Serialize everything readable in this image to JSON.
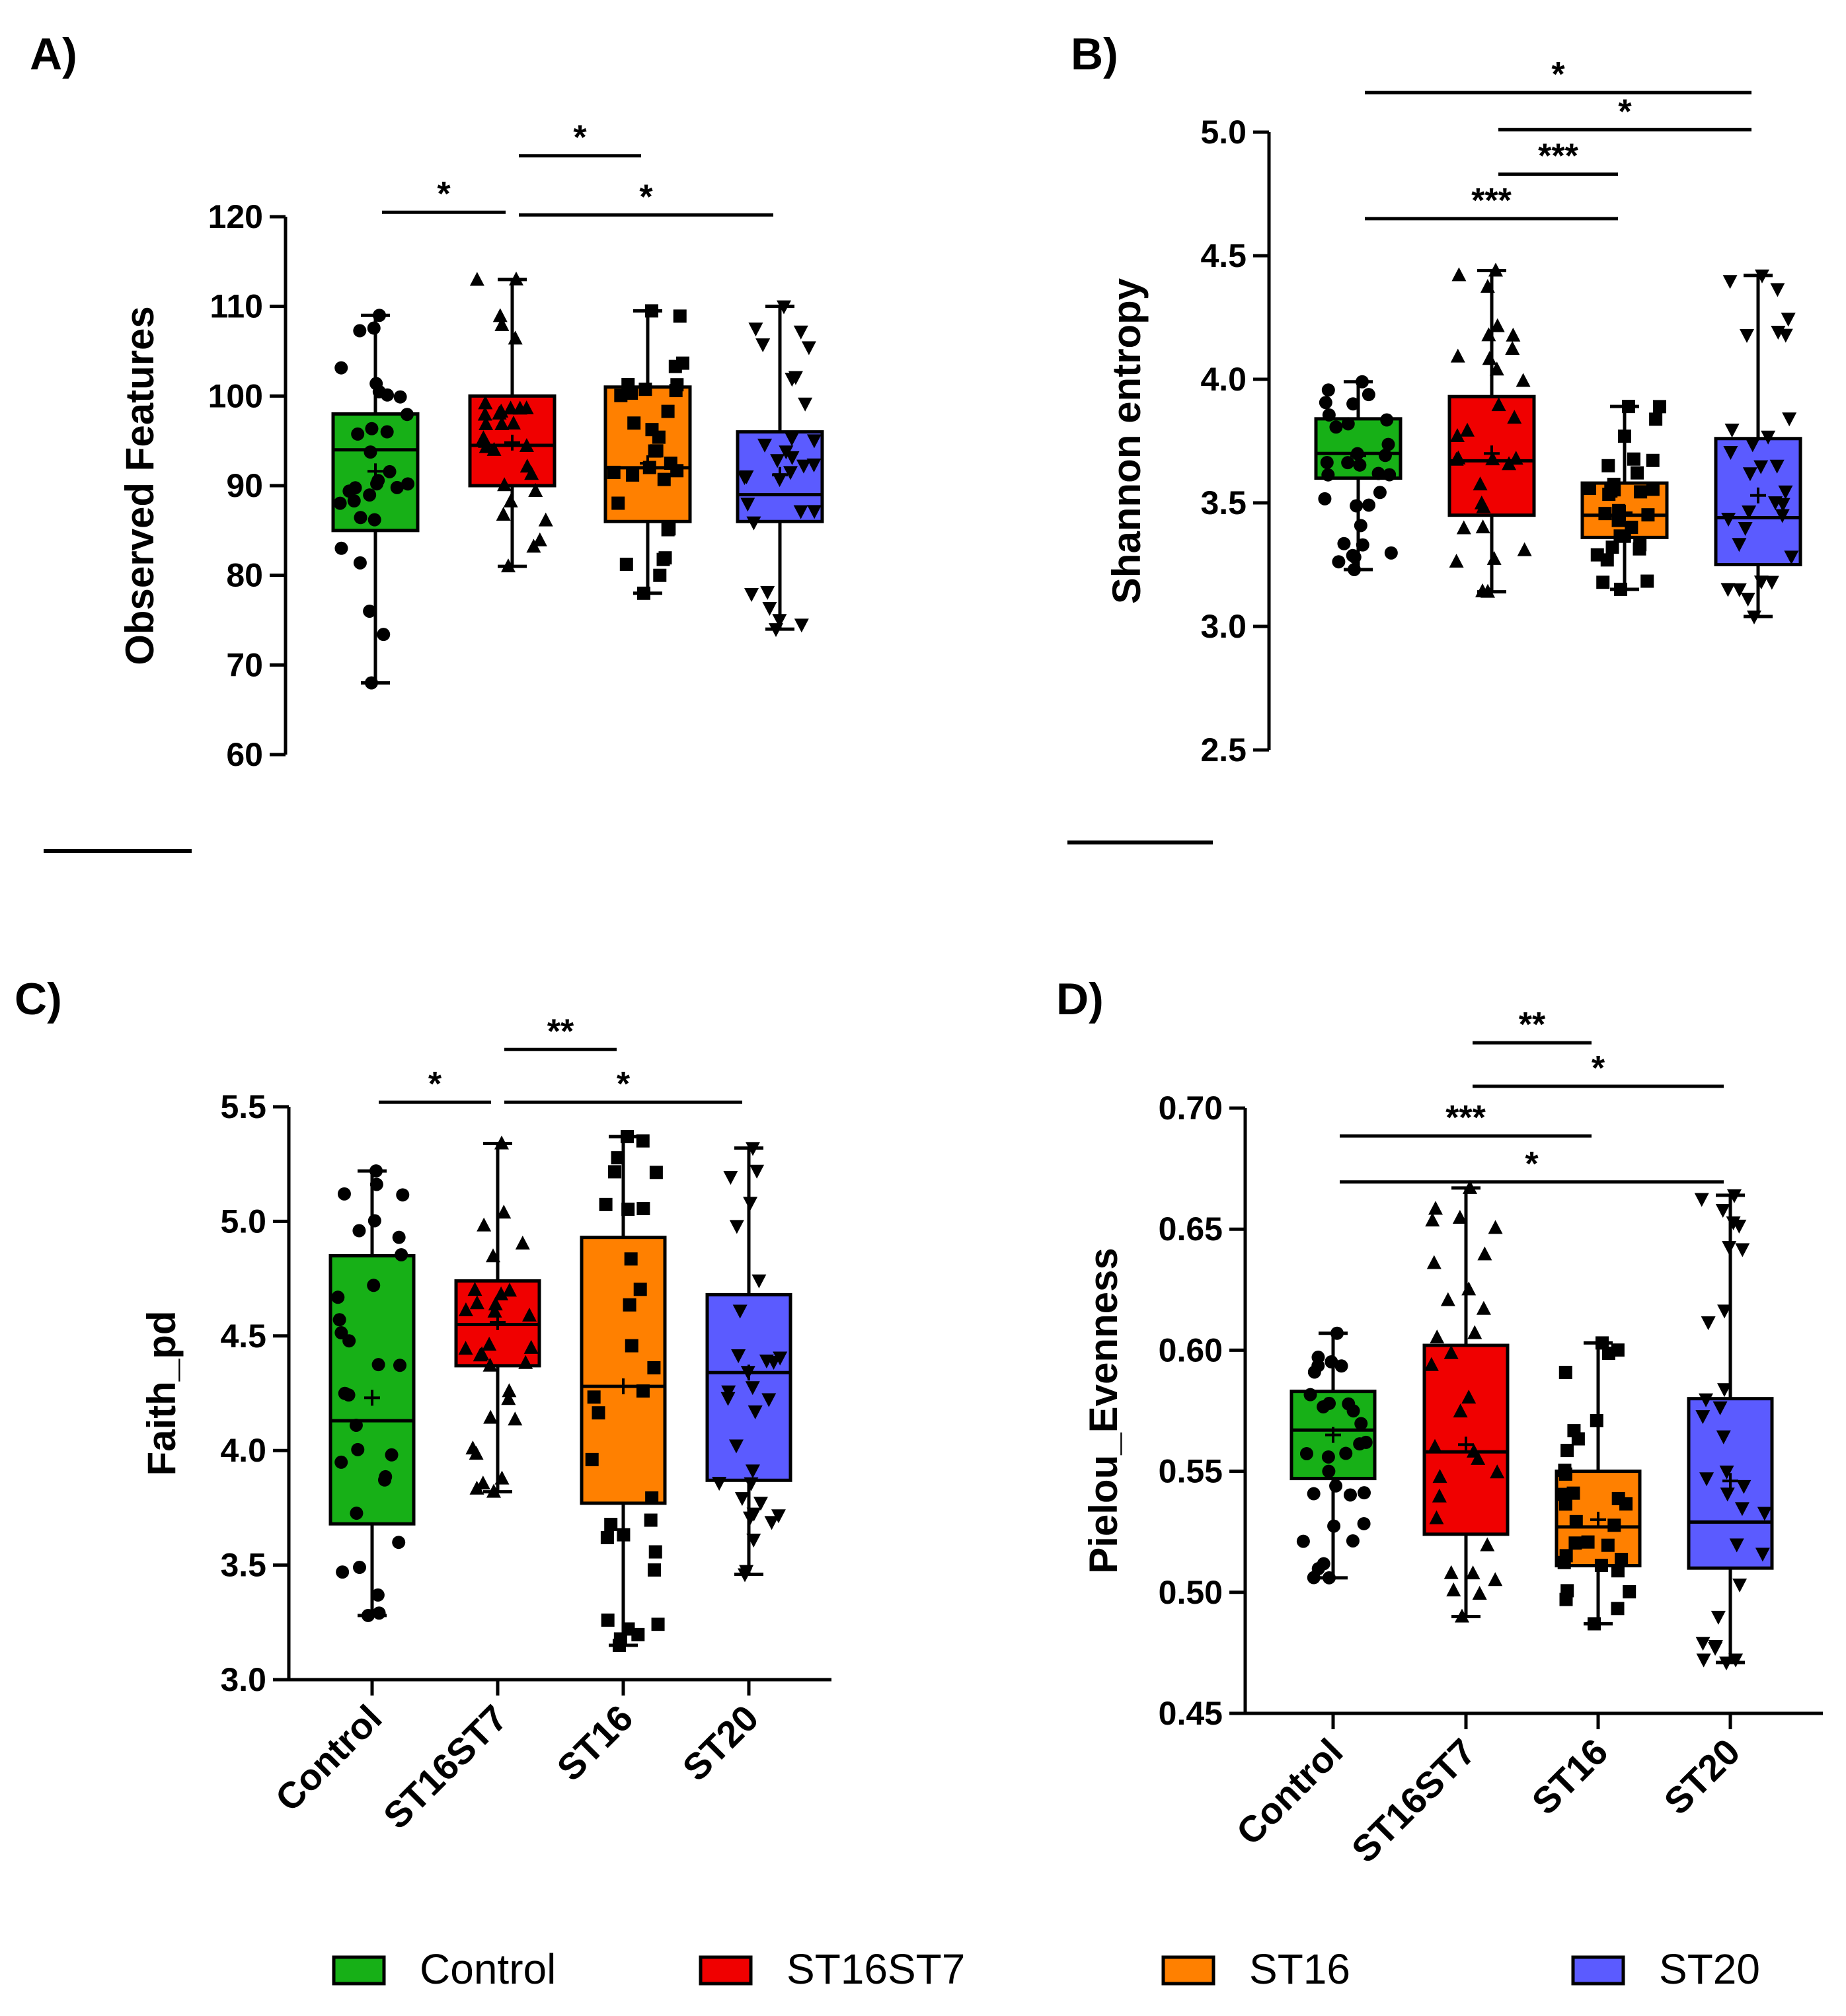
{
  "colors": {
    "Control": "#17b017",
    "ST16ST7": "#f00000",
    "ST16": "#ff8000",
    "ST20": "#5b5bff"
  },
  "legend": [
    {
      "name": "Control",
      "label": "Control"
    },
    {
      "name": "ST16ST7",
      "label": "ST16ST7"
    },
    {
      "name": "ST16",
      "label": "ST16"
    },
    {
      "name": "ST20",
      "label": "ST20"
    }
  ],
  "chart_data": [
    {
      "panel": "A)",
      "type": "box",
      "ylabel": "Observed Features",
      "ylim": [
        60,
        120
      ],
      "yticks": [
        "60",
        "70",
        "80",
        "90",
        "100",
        "110",
        "120"
      ],
      "show_xlabels": false,
      "categories": [
        "Control",
        "ST16ST7",
        "ST16",
        "ST20"
      ],
      "boxes": [
        {
          "group": "Control",
          "min": 68,
          "q1": 85,
          "median": 94,
          "q3": 98,
          "max": 109,
          "mean": 91.6
        },
        {
          "group": "ST16ST7",
          "min": 81,
          "q1": 90,
          "median": 94.5,
          "q3": 100,
          "max": 113,
          "mean": 94.8
        },
        {
          "group": "ST16",
          "min": 78,
          "q1": 86,
          "median": 92,
          "q3": 101,
          "max": 109.5,
          "mean": 92.5
        },
        {
          "group": "ST20",
          "min": 74,
          "q1": 86,
          "median": 89,
          "q3": 96,
          "max": 110,
          "mean": 91.2
        }
      ],
      "significance": [
        {
          "from": 0,
          "to": 1,
          "y": 120.5,
          "label": "*"
        },
        {
          "from": 1,
          "to": 2,
          "y": 126.8,
          "label": "*"
        },
        {
          "from": 1,
          "to": 3,
          "y": 120.2,
          "label": "*"
        }
      ]
    },
    {
      "panel": "B)",
      "type": "box",
      "ylabel": "Shannon entropy",
      "ylim": [
        2.5,
        5.0
      ],
      "yticks": [
        "2.5",
        "3.0",
        "3.5",
        "4.0",
        "4.5",
        "5.0"
      ],
      "show_xlabels": false,
      "categories": [
        "Control",
        "ST16ST7",
        "ST16",
        "ST20"
      ],
      "boxes": [
        {
          "group": "Control",
          "min": 3.23,
          "q1": 3.6,
          "median": 3.7,
          "q3": 3.84,
          "max": 3.99,
          "mean": 3.69
        },
        {
          "group": "ST16ST7",
          "min": 3.14,
          "q1": 3.45,
          "median": 3.67,
          "q3": 3.93,
          "max": 4.44,
          "mean": 3.7
        },
        {
          "group": "ST16",
          "min": 3.15,
          "q1": 3.36,
          "median": 3.45,
          "q3": 3.58,
          "max": 3.89,
          "mean": 3.46
        },
        {
          "group": "ST20",
          "min": 3.04,
          "q1": 3.25,
          "median": 3.44,
          "q3": 3.76,
          "max": 4.42,
          "mean": 3.53
        }
      ],
      "significance": [
        {
          "from": 0,
          "to": 3,
          "y": 5.16,
          "label": "*"
        },
        {
          "from": 1,
          "to": 3,
          "y": 5.01,
          "label": "*"
        },
        {
          "from": 1,
          "to": 2,
          "y": 4.83,
          "label": "***"
        },
        {
          "from": 0,
          "to": 2,
          "y": 4.65,
          "label": "***"
        }
      ]
    },
    {
      "panel": "C)",
      "type": "box",
      "ylabel": "Faith_pd",
      "ylim": [
        3.0,
        5.5
      ],
      "yticks": [
        "3.0",
        "3.5",
        "4.0",
        "4.5",
        "5.0",
        "5.5"
      ],
      "show_xlabels": true,
      "categories": [
        "Control",
        "ST16ST7",
        "ST16",
        "ST20"
      ],
      "boxes": [
        {
          "group": "Control",
          "min": 3.28,
          "q1": 3.68,
          "median": 4.13,
          "q3": 4.85,
          "max": 5.22,
          "mean": 4.23
        },
        {
          "group": "ST16ST7",
          "min": 3.82,
          "q1": 4.37,
          "median": 4.55,
          "q3": 4.74,
          "max": 5.34,
          "mean": 4.56
        },
        {
          "group": "ST16",
          "min": 3.15,
          "q1": 3.77,
          "median": 4.28,
          "q3": 4.93,
          "max": 5.37,
          "mean": 4.28
        },
        {
          "group": "ST20",
          "min": 3.46,
          "q1": 3.87,
          "median": 4.34,
          "q3": 4.68,
          "max": 5.32,
          "mean": 4.34
        }
      ],
      "significance": [
        {
          "from": 0,
          "to": 1,
          "y": 5.52,
          "label": "*"
        },
        {
          "from": 1,
          "to": 2,
          "y": 5.75,
          "label": "**"
        },
        {
          "from": 1,
          "to": 3,
          "y": 5.52,
          "label": "*"
        }
      ]
    },
    {
      "panel": "D)",
      "type": "box",
      "ylabel": "Pielou_Evenness",
      "ylim": [
        0.45,
        0.7
      ],
      "yticks": [
        "0.45",
        "0.50",
        "0.55",
        "0.60",
        "0.65",
        "0.70"
      ],
      "show_xlabels": true,
      "categories": [
        "Control",
        "ST16ST7",
        "ST16",
        "ST20"
      ],
      "boxes": [
        {
          "group": "Control",
          "min": 0.506,
          "q1": 0.547,
          "median": 0.567,
          "q3": 0.583,
          "max": 0.607,
          "mean": 0.565
        },
        {
          "group": "ST16ST7",
          "min": 0.49,
          "q1": 0.524,
          "median": 0.558,
          "q3": 0.602,
          "max": 0.667,
          "mean": 0.561
        },
        {
          "group": "ST16",
          "min": 0.487,
          "q1": 0.511,
          "median": 0.527,
          "q3": 0.55,
          "max": 0.603,
          "mean": 0.53
        },
        {
          "group": "ST20",
          "min": 0.471,
          "q1": 0.51,
          "median": 0.529,
          "q3": 0.58,
          "max": 0.664,
          "mean": 0.546
        }
      ],
      "significance": [
        {
          "from": 1,
          "to": 2,
          "y": 0.727,
          "label": "**"
        },
        {
          "from": 1,
          "to": 3,
          "y": 0.709,
          "label": "*"
        },
        {
          "from": 0,
          "to": 2,
          "y": 0.6885,
          "label": "***"
        },
        {
          "from": 0,
          "to": 3,
          "y": 0.6695,
          "label": "*"
        }
      ]
    }
  ]
}
